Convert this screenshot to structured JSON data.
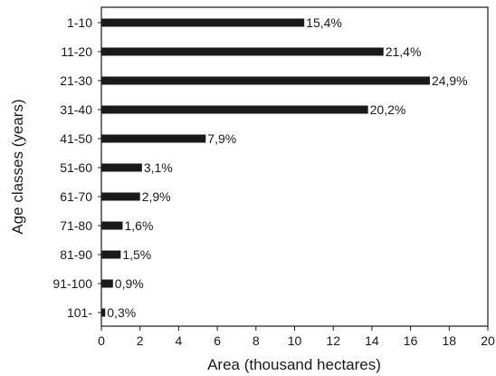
{
  "chart_data": {
    "type": "bar",
    "orientation": "horizontal",
    "xlabel": "Area (thousand hectares)",
    "ylabel": "Age classes (years)",
    "xlim": [
      0,
      20
    ],
    "xticks": [
      0,
      2,
      4,
      6,
      8,
      10,
      12,
      14,
      16,
      18,
      20
    ],
    "categories": [
      "1-10",
      "11-20",
      "21-30",
      "31-40",
      "41-50",
      "51-60",
      "61-70",
      "71-80",
      "81-90",
      "91-100",
      "101-"
    ],
    "values": [
      10.5,
      14.6,
      17.0,
      13.8,
      5.4,
      2.1,
      2.0,
      1.1,
      1.0,
      0.6,
      0.2
    ],
    "data_labels": [
      "15,4%",
      "21,4%",
      "24,9%",
      "20,2%",
      "7,9%",
      "3,1%",
      "2,9%",
      "1,6%",
      "1,5%",
      "0,9%",
      "0,3%"
    ],
    "grid": false,
    "bar_color": "#1a1a1a"
  }
}
